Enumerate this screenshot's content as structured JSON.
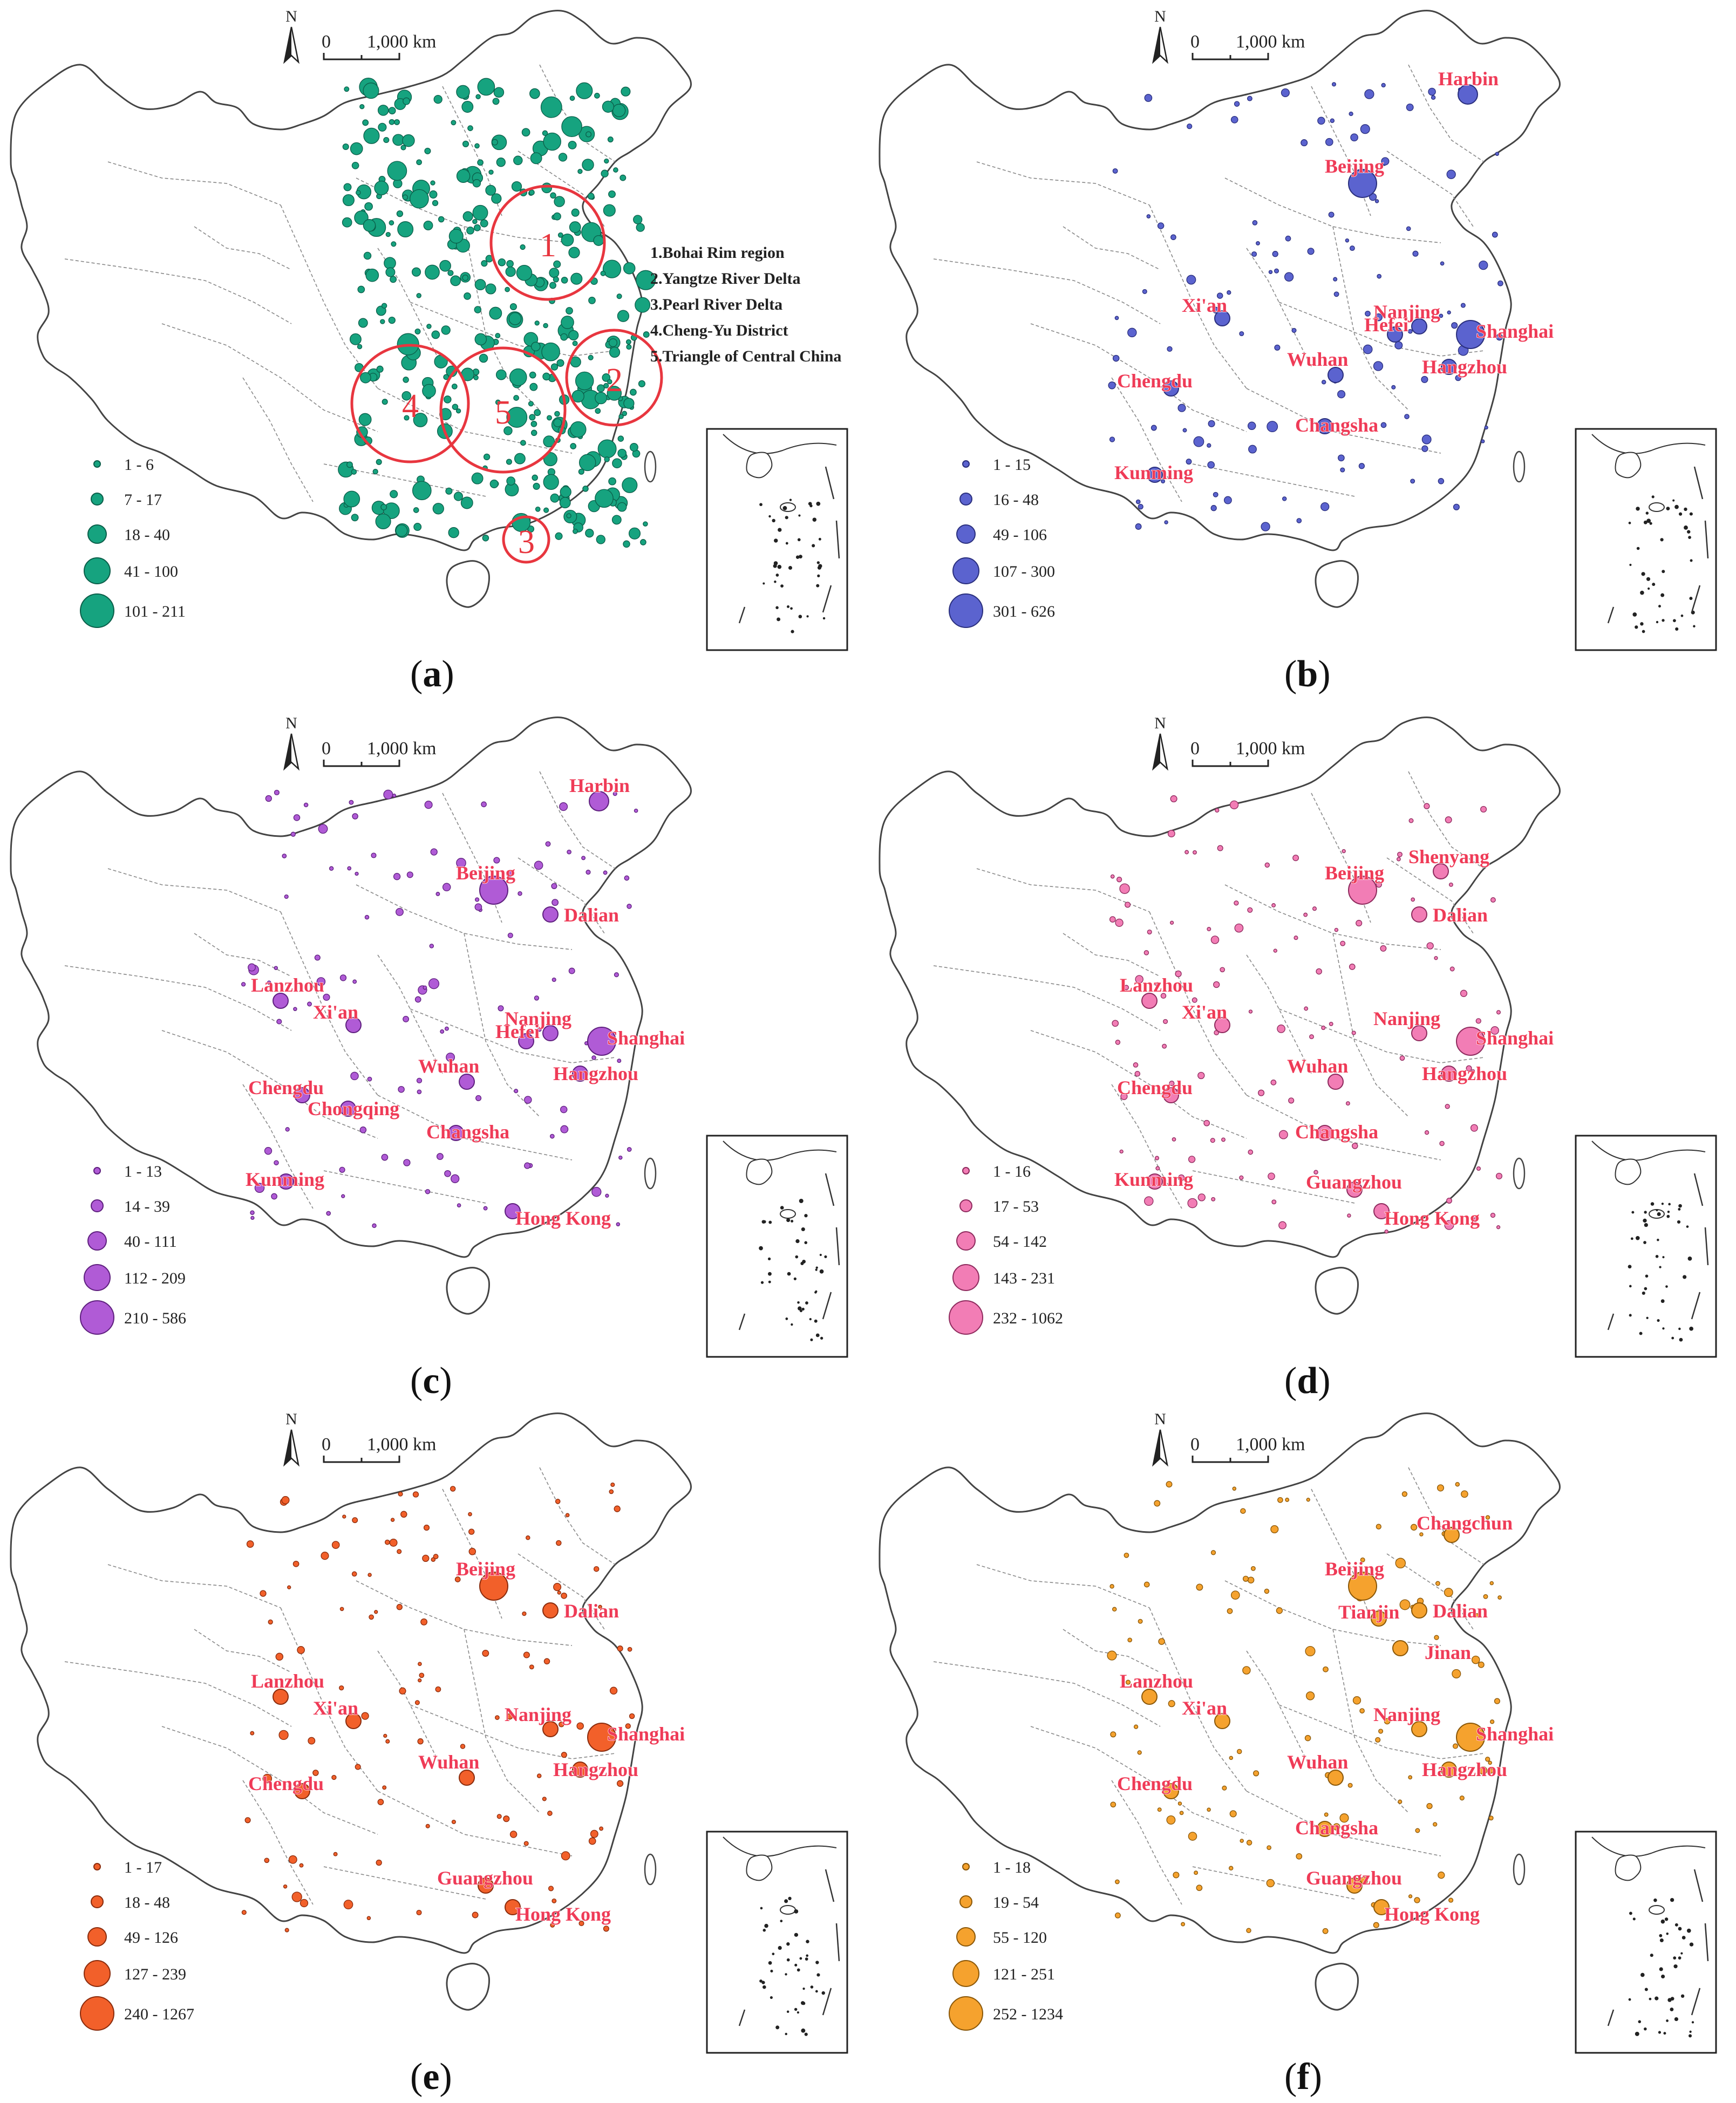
{
  "scale_bar": {
    "north": "N",
    "zero": "0",
    "distance": "1,000 km"
  },
  "panels": [
    {
      "id": "a",
      "caption_open": "(",
      "caption_letter": "a",
      "caption_close": ")",
      "color": "#16a37f",
      "stroke": "#0b5e49",
      "legend": [
        "1 - 6",
        "7 - 17",
        "18 - 40",
        "41 - 100",
        "101 - 211"
      ],
      "regions": [
        {
          "num": "1",
          "label": "1.Bohai Rim region"
        },
        {
          "num": "2",
          "label": "2.Yangtze River Delta"
        },
        {
          "num": "3",
          "label": "3.Pearl River Delta"
        },
        {
          "num": "4",
          "label": "4.Cheng-Yu District"
        },
        {
          "num": "5",
          "label": "5.Triangle of Central China"
        }
      ],
      "cities": []
    },
    {
      "id": "b",
      "caption_open": "(",
      "caption_letter": "b",
      "caption_close": ")",
      "color": "#5b63cf",
      "stroke": "#2a2f7d",
      "legend": [
        "1 - 15",
        "16 - 48",
        "49 - 106",
        "107 - 300",
        "301 - 626"
      ],
      "regions": [],
      "cities": [
        "Harbin",
        "Beijing",
        "Xi'an",
        "Nanjing",
        "Hefei",
        "Shanghai",
        "Chengdu",
        "Wuhan",
        "Hangzhou",
        "Changsha",
        "Kunming"
      ]
    },
    {
      "id": "c",
      "caption_open": "(",
      "caption_letter": "c",
      "caption_close": ")",
      "color": "#b05bd6",
      "stroke": "#5e1f7e",
      "legend": [
        "1 - 13",
        "14 - 39",
        "40 - 111",
        "112 - 209",
        "210 - 586"
      ],
      "regions": [],
      "cities": [
        "Harbin",
        "Beijing",
        "Dalian",
        "Lanzhou",
        "Xi'an",
        "Nanjing",
        "Hefei",
        "Shanghai",
        "Chengdu",
        "Wuhan",
        "Hangzhou",
        "Chongqing",
        "Changsha",
        "Kunming",
        "Hong Kong"
      ]
    },
    {
      "id": "d",
      "caption_open": "(",
      "caption_letter": "d",
      "caption_close": ")",
      "color": "#f27db5",
      "stroke": "#8e2a5d",
      "legend": [
        "1 - 16",
        "17 - 53",
        "54 - 142",
        "143 - 231",
        "232 - 1062"
      ],
      "regions": [],
      "cities": [
        "Shenyang",
        "Beijing",
        "Dalian",
        "Lanzhou",
        "Xi'an",
        "Nanjing",
        "Shanghai",
        "Chengdu",
        "Wuhan",
        "Hangzhou",
        "Changsha",
        "Kunming",
        "Guangzhou",
        "Hong Kong"
      ]
    },
    {
      "id": "e",
      "caption_open": "(",
      "caption_letter": "e",
      "caption_close": ")",
      "color": "#f2602a",
      "stroke": "#8a2b0c",
      "legend": [
        "1 - 17",
        "18 - 48",
        "49 - 126",
        "127 - 239",
        "240 - 1267"
      ],
      "regions": [],
      "cities": [
        "Beijing",
        "Dalian",
        "Lanzhou",
        "Xi'an",
        "Nanjing",
        "Shanghai",
        "Chengdu",
        "Wuhan",
        "Hangzhou",
        "Guangzhou",
        "Hong Kong"
      ]
    },
    {
      "id": "f",
      "caption_open": "(",
      "caption_letter": "f",
      "caption_close": ")",
      "color": "#f5a22e",
      "stroke": "#8a5708",
      "legend": [
        "1 - 18",
        "19 - 54",
        "55 - 120",
        "121 - 251",
        "252 - 1234"
      ],
      "regions": [],
      "cities": [
        "Changchun",
        "Beijing",
        "Dalian",
        "Tianjin",
        "Jinan",
        "Lanzhou",
        "Xi'an",
        "Nanjing",
        "Shanghai",
        "Chengdu",
        "Wuhan",
        "Hangzhou",
        "Changsha",
        "Guangzhou",
        "Hong Kong"
      ]
    }
  ]
}
